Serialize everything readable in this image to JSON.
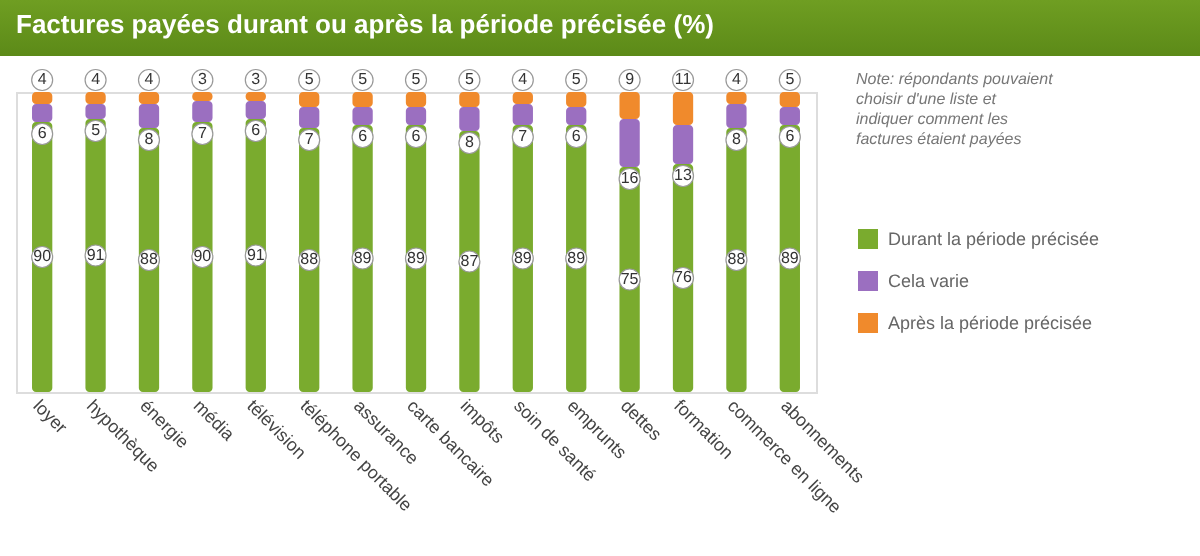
{
  "chart_data": {
    "type": "bar",
    "title": "Factures payées durant ou après la période précisée (%)",
    "categories": [
      "loyer",
      "hypothèque",
      "énergie",
      "média",
      "télévision",
      "téléphone portable",
      "assurance",
      "carte bancaire",
      "impôts",
      "soin de santé",
      "emprunts",
      "dettes",
      "formation",
      "commerce en ligne",
      "abonnements"
    ],
    "series": [
      {
        "name": "Durant la période précisée",
        "color": "#7aab2e",
        "values": [
          90,
          91,
          88,
          90,
          91,
          88,
          89,
          89,
          87,
          89,
          89,
          75,
          76,
          88,
          89
        ]
      },
      {
        "name": "Cela varie",
        "color": "#9b6fc0",
        "values": [
          6,
          5,
          8,
          7,
          6,
          7,
          6,
          6,
          8,
          7,
          6,
          16,
          13,
          8,
          6
        ]
      },
      {
        "name": "Après la période précisée",
        "color": "#f08a2c",
        "values": [
          4,
          4,
          4,
          3,
          3,
          5,
          5,
          5,
          5,
          4,
          5,
          9,
          11,
          4,
          5
        ]
      }
    ],
    "stacked": true,
    "data_labels": true,
    "legend": "right",
    "annotations": [
      "Note: répondants pouvaient choisir d'une liste et indiquer comment les factures étaient payées"
    ]
  }
}
